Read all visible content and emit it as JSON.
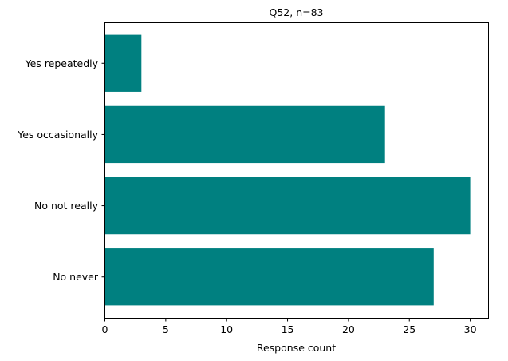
{
  "chart_data": {
    "type": "bar",
    "orientation": "horizontal",
    "title": "Q52, n=83",
    "xlabel": "Response count",
    "ylabel": "",
    "categories": [
      "No never",
      "No not really",
      "Yes occasionally",
      "Yes repeatedly"
    ],
    "values": [
      27,
      30,
      23,
      3
    ],
    "xlim": [
      0,
      31.5
    ],
    "xticks": [
      "0",
      "5",
      "10",
      "15",
      "20",
      "25",
      "30"
    ],
    "grid": false,
    "bar_color": "#008080"
  }
}
